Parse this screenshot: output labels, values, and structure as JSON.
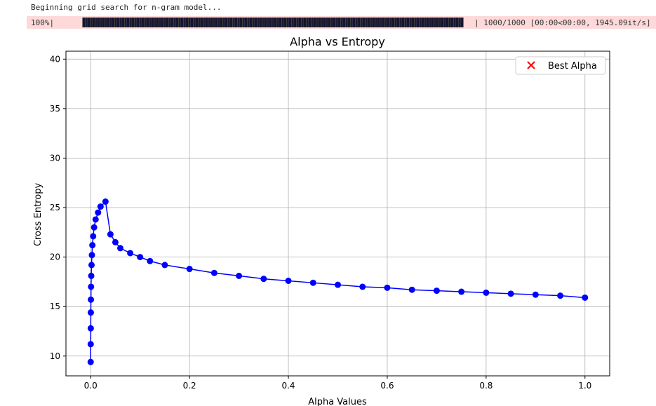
{
  "output": {
    "log_line": "Beginning grid search for n-gram model...",
    "progress": {
      "percent_label": "100%|",
      "fraction": 1.0,
      "stats": "| 1000/1000 [00:00<00:00, 1945.09it/s]"
    }
  },
  "colors": {
    "series": "#0000ff",
    "best_marker": "#ff0000",
    "grid": "#b0b0b0",
    "progress_background": "#fdd9d9"
  },
  "chart_data": {
    "type": "line",
    "title": "Alpha vs Entropy",
    "xlabel": "Alpha Values",
    "ylabel": "Cross Entropy",
    "xlim": [
      -0.05,
      1.05
    ],
    "ylim": [
      8.0,
      40.8
    ],
    "xticks": [
      0.0,
      0.2,
      0.4,
      0.6,
      0.8,
      1.0
    ],
    "xtick_labels": [
      "0.0",
      "0.2",
      "0.4",
      "0.6",
      "0.8",
      "1.0"
    ],
    "yticks": [
      10,
      15,
      20,
      25,
      30,
      35,
      40
    ],
    "ytick_labels": [
      "10",
      "15",
      "20",
      "25",
      "30",
      "35",
      "40"
    ],
    "grid": true,
    "legend": {
      "position": "top-right",
      "entries": [
        {
          "label": "Best Alpha",
          "marker": "x"
        }
      ]
    },
    "series": [
      {
        "marker": "circle",
        "x": [
          0.0,
          0.0001,
          0.0002,
          0.0003,
          0.0005,
          0.0008,
          0.0012,
          0.0018,
          0.0025,
          0.0035,
          0.005,
          0.007,
          0.01,
          0.015,
          0.02,
          0.03,
          0.04,
          0.05,
          0.06,
          0.08,
          0.1,
          0.12,
          0.15,
          0.2,
          0.25,
          0.3,
          0.35,
          0.4,
          0.45,
          0.5,
          0.55,
          0.6,
          0.65,
          0.7,
          0.75,
          0.8,
          0.85,
          0.9,
          0.95,
          1.0
        ],
        "y": [
          9.4,
          11.2,
          12.8,
          14.4,
          15.7,
          17.0,
          18.1,
          19.2,
          20.2,
          21.2,
          22.1,
          23.0,
          23.8,
          24.5,
          25.1,
          25.6,
          22.3,
          21.5,
          20.9,
          20.4,
          20.0,
          19.6,
          19.2,
          18.8,
          18.4,
          18.1,
          17.8,
          17.6,
          17.4,
          17.2,
          17.0,
          16.9,
          16.7,
          16.6,
          16.5,
          16.4,
          16.3,
          16.2,
          16.1,
          15.9
        ]
      }
    ]
  }
}
